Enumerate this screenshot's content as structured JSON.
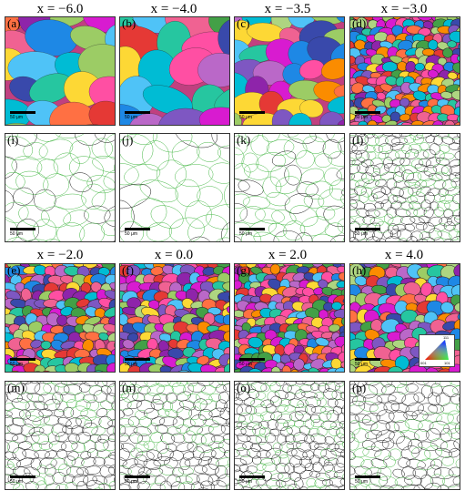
{
  "row_titles": {
    "top": [
      "x = −6.0",
      "x = −4.0",
      "x = −3.5",
      "x = −3.0"
    ],
    "bottom": [
      "x = −2.0",
      "x = 0.0",
      "x = 2.0",
      "x = 4.0"
    ]
  },
  "panels": {
    "a": "(a)",
    "b": "(b)",
    "c": "(c)",
    "d": "(d)",
    "e": "(e)",
    "f": "(f)",
    "g": "(g)",
    "h": "(h)",
    "i": "(i)",
    "j": "(j)",
    "k": "(k)",
    "l": "(l)",
    "m": "(m)",
    "n": "(n)",
    "o": "(o)",
    "p": "(p)"
  },
  "scale_bar_label": "50 μm",
  "legend": {
    "corner_001": "001",
    "corner_101": "101",
    "corner_111": "111"
  },
  "colors": {
    "grain_boundary_low": "#3fb53f",
    "grain_boundary_high": "#111111"
  }
}
